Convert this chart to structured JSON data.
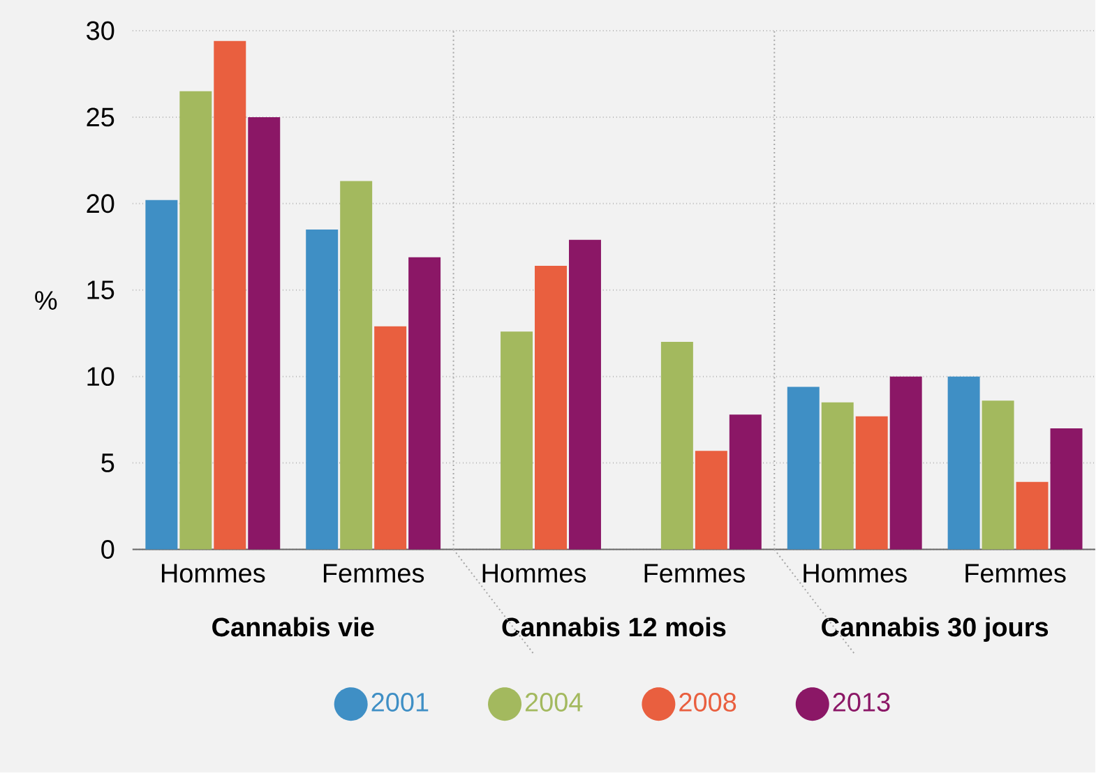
{
  "chart_data": {
    "type": "bar",
    "ylabel": "%",
    "categories": [
      "Hommes",
      "Femmes",
      "Hommes",
      "Femmes",
      "Hommes",
      "Femmes"
    ],
    "series": [
      {
        "name": "2001",
        "color": "#3f8fc5",
        "values": [
          20.2,
          18.5,
          null,
          null,
          9.4,
          10.0
        ]
      },
      {
        "name": "2004",
        "color": "#a3b95e",
        "values": [
          26.5,
          21.3,
          12.6,
          12.0,
          8.5,
          8.6
        ]
      },
      {
        "name": "2008",
        "color": "#e95f3f",
        "values": [
          29.4,
          12.9,
          16.4,
          5.7,
          7.7,
          3.9
        ]
      },
      {
        "name": "2013",
        "color": "#8b1766",
        "values": [
          25.0,
          16.9,
          17.9,
          7.8,
          10.0,
          7.0
        ]
      }
    ],
    "ylim": [
      0,
      30
    ],
    "yticks": [
      0,
      5,
      10,
      15,
      20,
      25,
      30
    ],
    "grid": "y",
    "legend": "bottom",
    "annotations": [
      "Cannabis vie",
      "Cannabis 12 mois",
      "Cannabis 30 jours"
    ]
  }
}
